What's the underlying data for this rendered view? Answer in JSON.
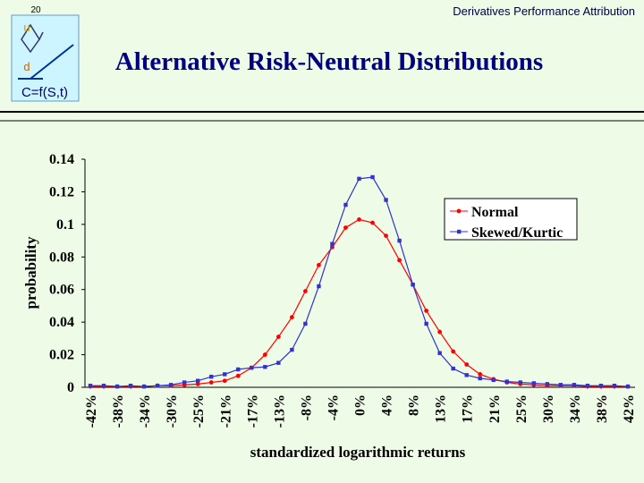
{
  "slide": {
    "page": "20",
    "header": "Derivatives  Performance Attribution",
    "logo_up": "u",
    "logo_down": "d",
    "logo_formula": "C=f(S,t)",
    "title": "Alternative Risk-Neutral Distributions"
  },
  "chart_data": {
    "type": "line",
    "x_label": "standardized logarithmic returns",
    "y_label": "probability",
    "categories": [
      "-42%",
      null,
      "-38%",
      null,
      "-34%",
      null,
      "-30%",
      null,
      "-25%",
      null,
      "-21%",
      null,
      "-17%",
      null,
      "-13%",
      null,
      "-8%",
      null,
      "-4%",
      null,
      "0%",
      null,
      "4%",
      null,
      "8%",
      null,
      "13%",
      null,
      "17%",
      null,
      "21%",
      null,
      "25%",
      null,
      "30%",
      null,
      "34%",
      null,
      "38%",
      null,
      "42%"
    ],
    "series": [
      {
        "name": "Normal",
        "color": "#ff0000",
        "marker": "circle",
        "values": [
          0.0005,
          0.0005,
          0.0005,
          0.0005,
          0.0005,
          0.001,
          0.001,
          0.0015,
          0.002,
          0.003,
          0.004,
          0.007,
          0.012,
          0.02,
          0.031,
          0.043,
          0.059,
          0.075,
          0.086,
          0.098,
          0.103,
          0.101,
          0.093,
          0.078,
          0.063,
          0.047,
          0.034,
          0.022,
          0.014,
          0.008,
          0.005,
          0.003,
          0.002,
          0.0015,
          0.001,
          0.001,
          0.001,
          0.0005,
          0.0005,
          0.0005,
          0.0005
        ]
      },
      {
        "name": "Skewed/Kurtic",
        "color": "#3333cc",
        "marker": "square",
        "values": [
          0.001,
          0.001,
          0.0005,
          0.001,
          0.0005,
          0.001,
          0.0015,
          0.003,
          0.004,
          0.0065,
          0.008,
          0.011,
          0.012,
          0.0125,
          0.015,
          0.023,
          0.039,
          0.062,
          0.088,
          0.112,
          0.128,
          0.129,
          0.115,
          0.09,
          0.063,
          0.039,
          0.021,
          0.0115,
          0.0075,
          0.0055,
          0.0045,
          0.0035,
          0.003,
          0.0025,
          0.002,
          0.0015,
          0.0015,
          0.001,
          0.001,
          0.001,
          0.0005
        ]
      }
    ],
    "ylim": [
      0,
      0.14
    ],
    "yticks": [
      0,
      0.02,
      0.04,
      0.06,
      0.08,
      0.1,
      0.12,
      0.14
    ],
    "grid": false,
    "legend": "upper right"
  }
}
